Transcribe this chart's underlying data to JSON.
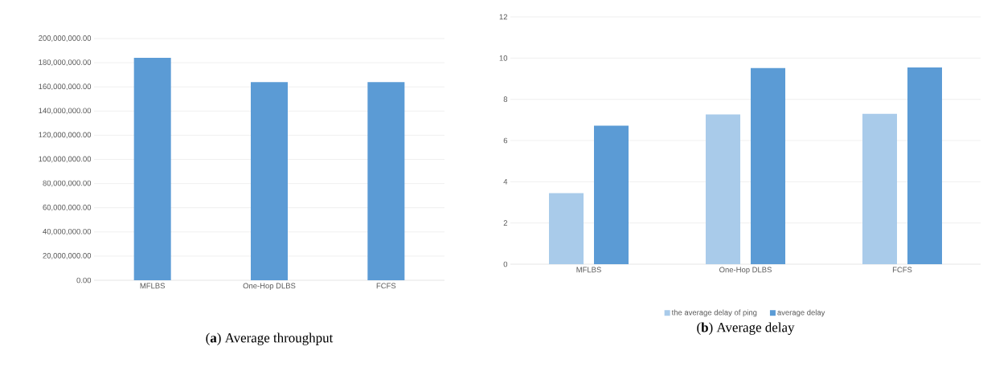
{
  "chart_data": [
    {
      "type": "bar",
      "title": "(**a**) Average throughput",
      "categories": [
        "MFLBS",
        "One-Hop DLBS",
        "FCFS"
      ],
      "values": [
        184000000,
        164000000,
        164000000
      ],
      "color": "#5b9bd5",
      "ylim": [
        0,
        200000000
      ],
      "yticks": [
        {
          "value": 0,
          "label": "0.00"
        },
        {
          "value": 20000000,
          "label": "20,000,000.00"
        },
        {
          "value": 40000000,
          "label": "40,000,000.00"
        },
        {
          "value": 60000000,
          "label": "60,000,000.00"
        },
        {
          "value": 80000000,
          "label": "80,000,000.00"
        },
        {
          "value": 100000000,
          "label": "100,000,000.00"
        },
        {
          "value": 120000000,
          "label": "120,000,000.00"
        },
        {
          "value": 140000000,
          "label": "140,000,000.00"
        },
        {
          "value": 160000000,
          "label": "160,000,000.00"
        },
        {
          "value": 180000000,
          "label": "180,000,000.00"
        },
        {
          "value": 200000000,
          "label": "200,000,000.00"
        }
      ],
      "grid": "y"
    },
    {
      "type": "bar",
      "title": "(**b**) Average delay",
      "categories": [
        "MFLBS",
        "One-Hop DLBS",
        "FCFS"
      ],
      "series": [
        {
          "name": "the average delay of ping",
          "color": "#a9cbea",
          "values": [
            3.45,
            7.27,
            7.3
          ]
        },
        {
          "name": "average delay",
          "color": "#5b9bd5",
          "values": [
            6.72,
            9.52,
            9.55
          ]
        }
      ],
      "ylim": [
        0,
        12
      ],
      "yticks": [
        0,
        2,
        4,
        6,
        8,
        10,
        12
      ],
      "grid": "y",
      "legend": "bottom"
    }
  ]
}
